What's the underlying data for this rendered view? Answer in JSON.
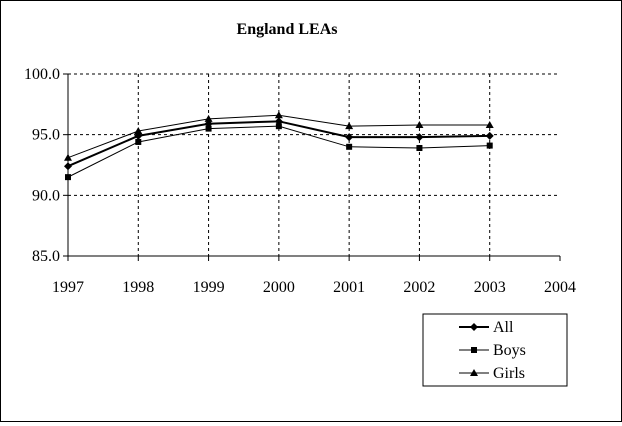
{
  "chart_data": {
    "type": "line",
    "title": "England LEAs",
    "xlabel": "",
    "ylabel": "",
    "x": [
      "1997",
      "1998",
      "1999",
      "2000",
      "2001",
      "2002",
      "2003"
    ],
    "x_ticks": [
      "1997",
      "1998",
      "1999",
      "2000",
      "2001",
      "2002",
      "2003",
      "2004"
    ],
    "xlim": [
      1997,
      2004
    ],
    "ylim": [
      85.0,
      100.0
    ],
    "y_ticks": [
      "85.0",
      "90.0",
      "95.0",
      "100.0"
    ],
    "grid": "dashed",
    "legend_position": "bottom-right",
    "series": [
      {
        "name": "All",
        "marker": "diamond",
        "values": [
          92.4,
          94.9,
          95.9,
          96.1,
          94.8,
          94.8,
          94.9
        ]
      },
      {
        "name": "Boys",
        "marker": "square",
        "values": [
          91.5,
          94.4,
          95.5,
          95.7,
          94.0,
          93.9,
          94.1
        ]
      },
      {
        "name": "Girls",
        "marker": "triangle",
        "values": [
          93.1,
          95.3,
          96.3,
          96.6,
          95.7,
          95.8,
          95.8
        ]
      }
    ]
  }
}
